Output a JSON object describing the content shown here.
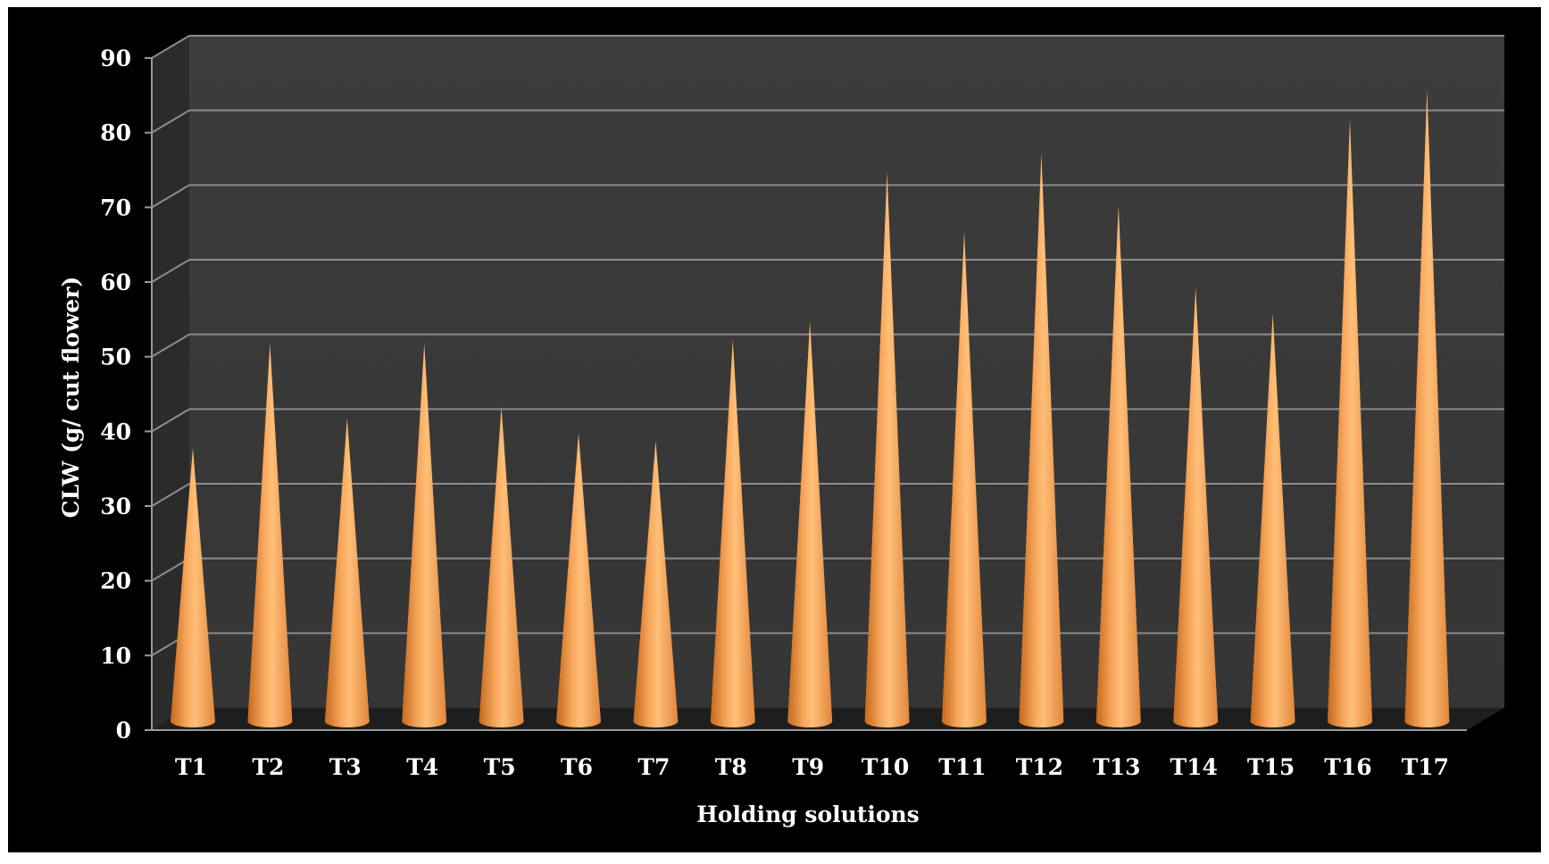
{
  "chart_data": {
    "type": "bar",
    "bar_shape": "cone",
    "style": "3d",
    "xlabel": "Holding solutions",
    "ylabel": "CLW  (g/ cut flower)",
    "ylim": [
      0,
      90
    ],
    "yticks": [
      "0",
      "10",
      "20",
      "30",
      "40",
      "50",
      "60",
      "70",
      "80",
      "90"
    ],
    "grid": true,
    "legend": "none",
    "categories": [
      "T1",
      "T2",
      "T3",
      "T4",
      "T5",
      "T6",
      "T7",
      "T8",
      "T9",
      "T10",
      "T11",
      "T12",
      "T13",
      "T14",
      "T15",
      "T16",
      "T17"
    ],
    "values": [
      36,
      50,
      40,
      50,
      41.5,
      38,
      37,
      50.5,
      53,
      73,
      65,
      75.5,
      68.5,
      57.5,
      54,
      80,
      84
    ],
    "colors": {
      "background": "#000000",
      "wall": "#3a3a3a",
      "side_wall": "#2b2b2b",
      "floor": "#1e1e1e",
      "gridline": "#8c8c8c",
      "cone": "#f5a04e",
      "cone_highlight": "#ffc07a",
      "cone_shadow": "#c06a20",
      "text": "#ffffff"
    }
  }
}
